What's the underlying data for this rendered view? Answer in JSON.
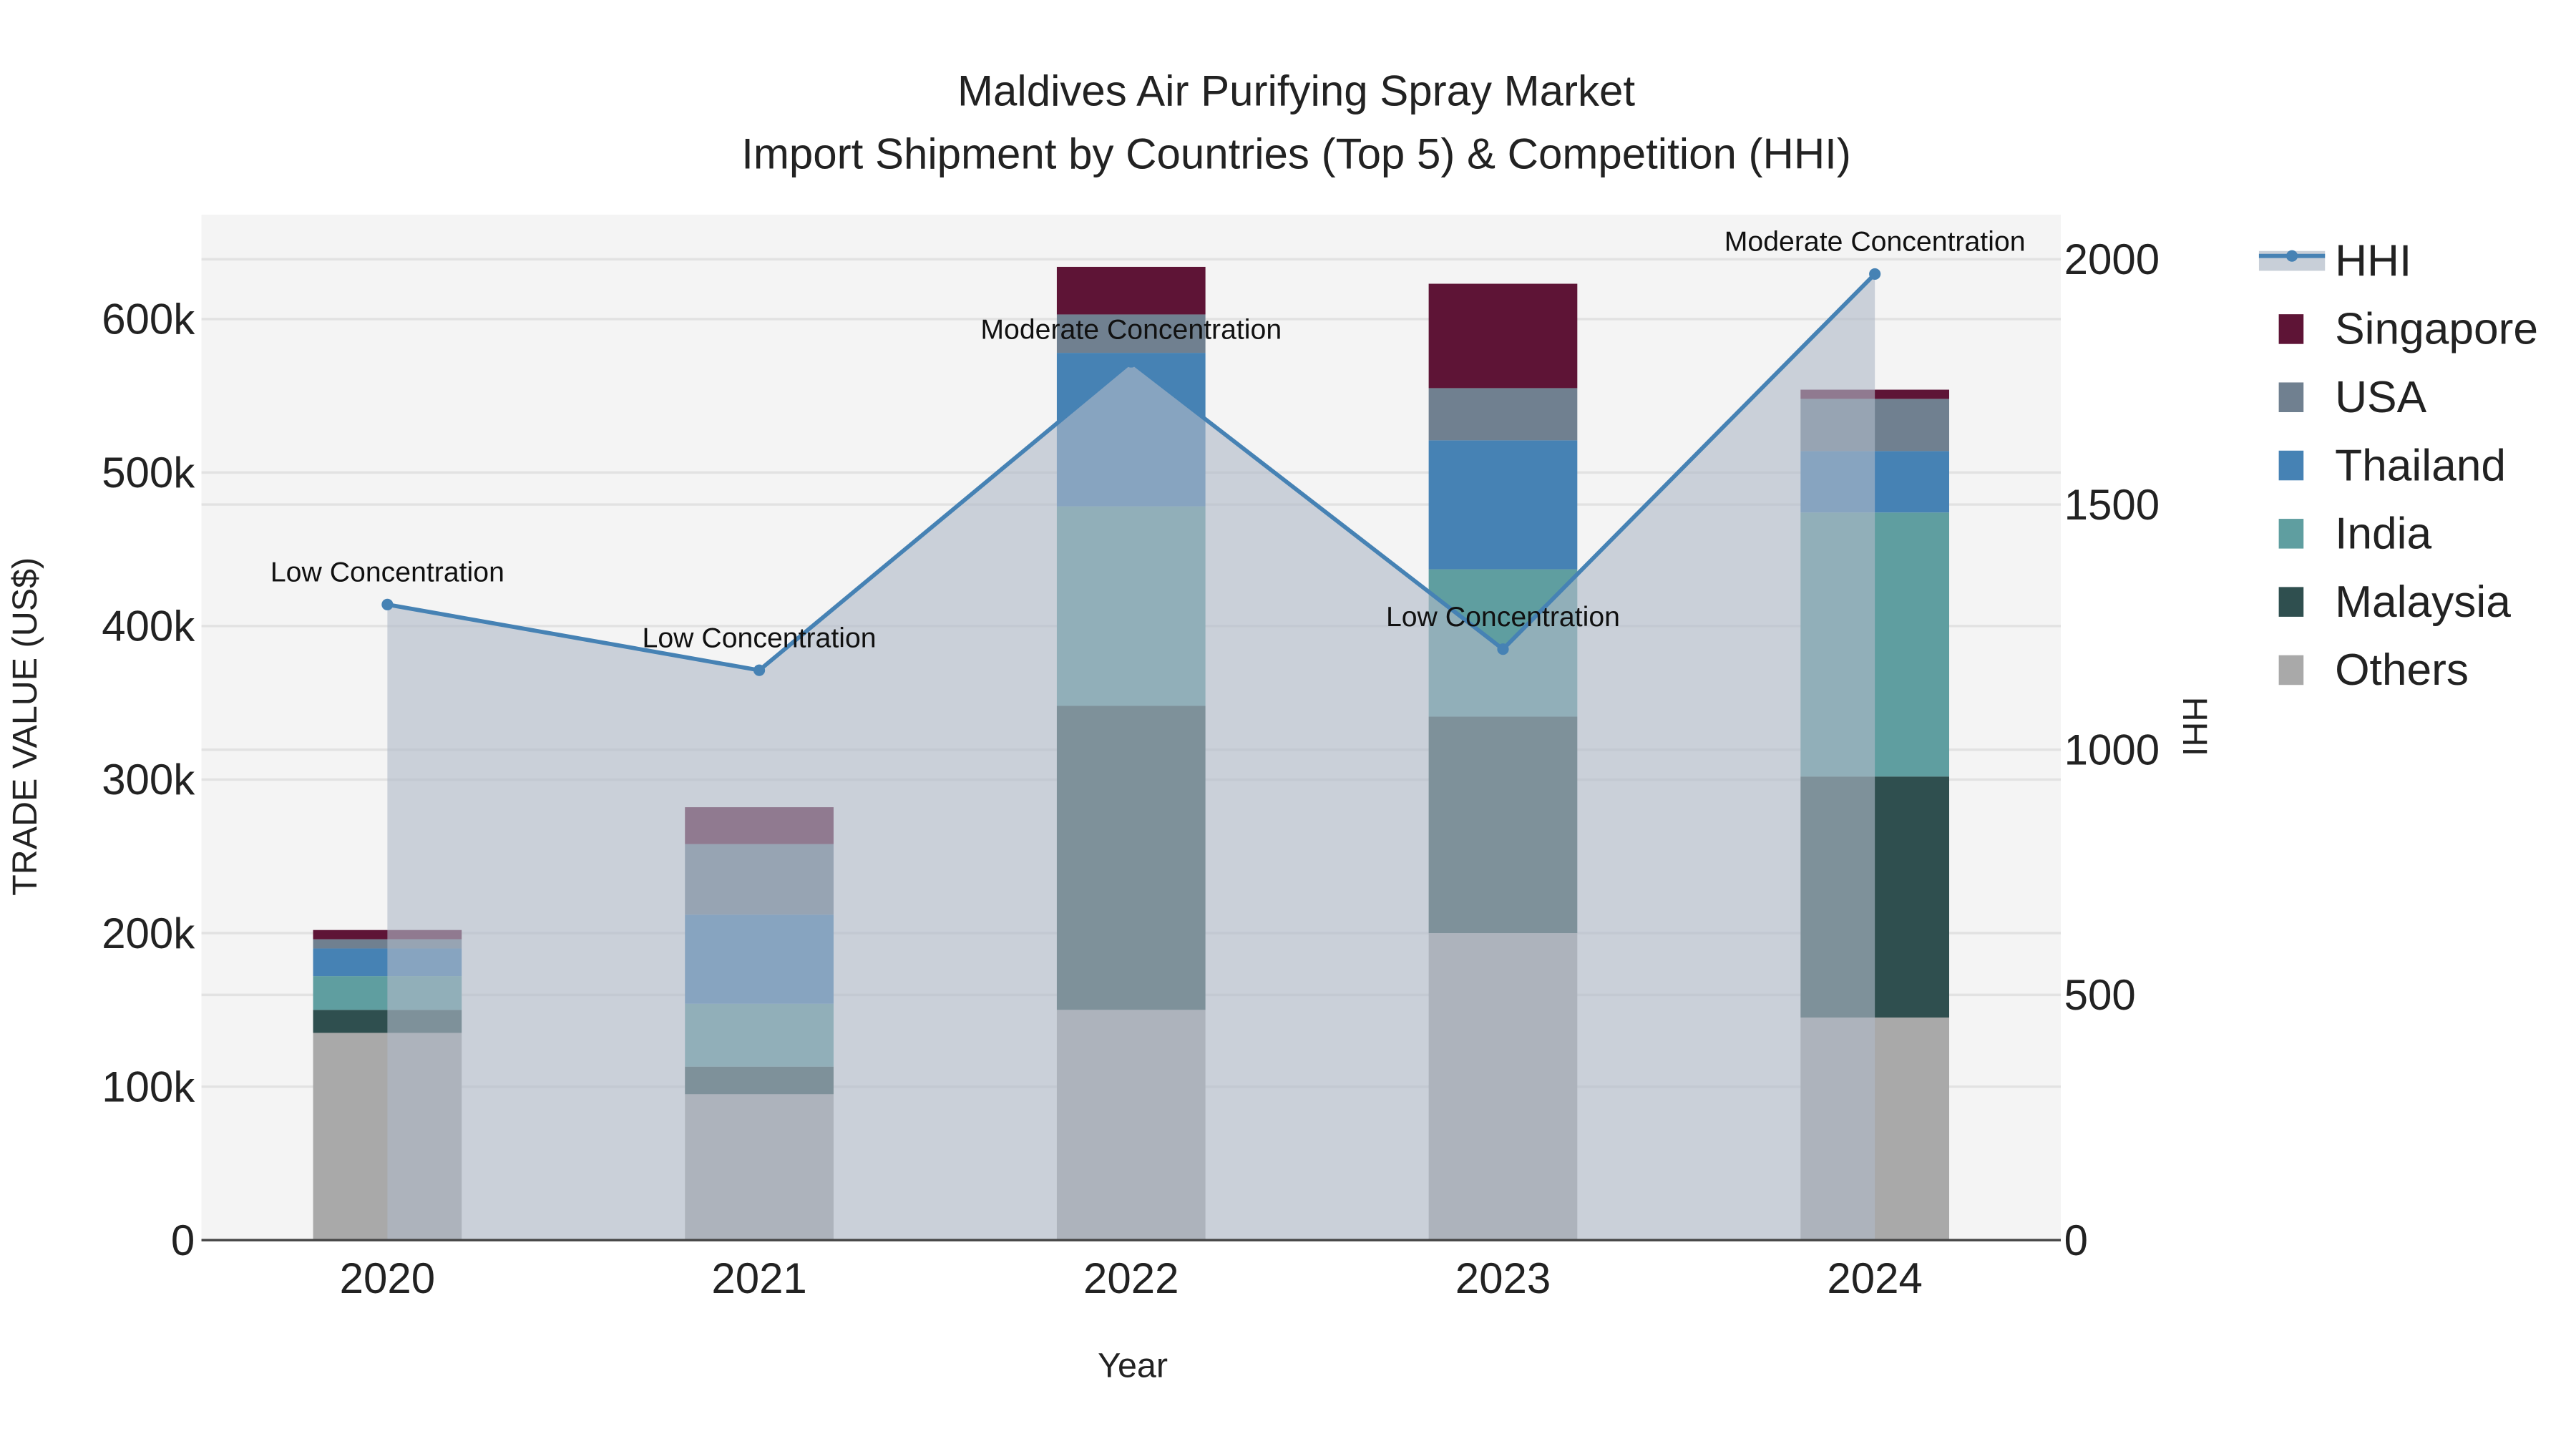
{
  "chart_data": {
    "type": "bar",
    "title": "Maldives Air Purifying Spray Market",
    "subtitle": "Import Shipment by Countries (Top 5) & Competition (HHI)",
    "xlabel": "Year",
    "ylabel": "TRADE VALUE (US$)",
    "y2label": "HHI",
    "categories": [
      "2020",
      "2021",
      "2022",
      "2023",
      "2024"
    ],
    "ylim": [
      0,
      668000
    ],
    "y2lim": [
      0,
      2091
    ],
    "yticks": [
      0,
      100000,
      200000,
      300000,
      400000,
      500000,
      600000
    ],
    "ytick_labels": [
      "0",
      "100k",
      "200k",
      "300k",
      "400k",
      "500k",
      "600k"
    ],
    "y2ticks": [
      0,
      500,
      1000,
      1500,
      2000
    ],
    "y2tick_labels": [
      "0",
      "500",
      "1000",
      "1500",
      "2000"
    ],
    "stacking": "stacked",
    "series": [
      {
        "name": "Others",
        "color": "#a9a9a9",
        "values": [
          135000,
          95000,
          150000,
          200000,
          145000
        ]
      },
      {
        "name": "Malaysia",
        "color": "#2f4f4f",
        "values": [
          15000,
          18000,
          198000,
          141000,
          157000
        ]
      },
      {
        "name": "India",
        "color": "#5f9ea0",
        "values": [
          22000,
          41000,
          130000,
          96000,
          172000
        ]
      },
      {
        "name": "Thailand",
        "color": "#4682b4",
        "values": [
          18000,
          58000,
          100000,
          84000,
          40000
        ]
      },
      {
        "name": "USA",
        "color": "#708090",
        "values": [
          6000,
          46000,
          25000,
          34000,
          34000
        ]
      },
      {
        "name": "Singapore",
        "color": "#5e1436",
        "values": [
          6000,
          24000,
          31000,
          68000,
          6000
        ]
      }
    ],
    "hhi": {
      "name": "HHI",
      "color": "#4682b4",
      "values": [
        1296,
        1162,
        1791,
        1205,
        1970
      ],
      "annotations": [
        "Low Concentration",
        "Low Concentration",
        "Moderate Concentration",
        "Low Concentration",
        "Moderate Concentration"
      ]
    },
    "legend_order": [
      "HHI",
      "Singapore",
      "USA",
      "Thailand",
      "India",
      "Malaysia",
      "Others"
    ],
    "legend_placement": "right",
    "grid": true
  }
}
